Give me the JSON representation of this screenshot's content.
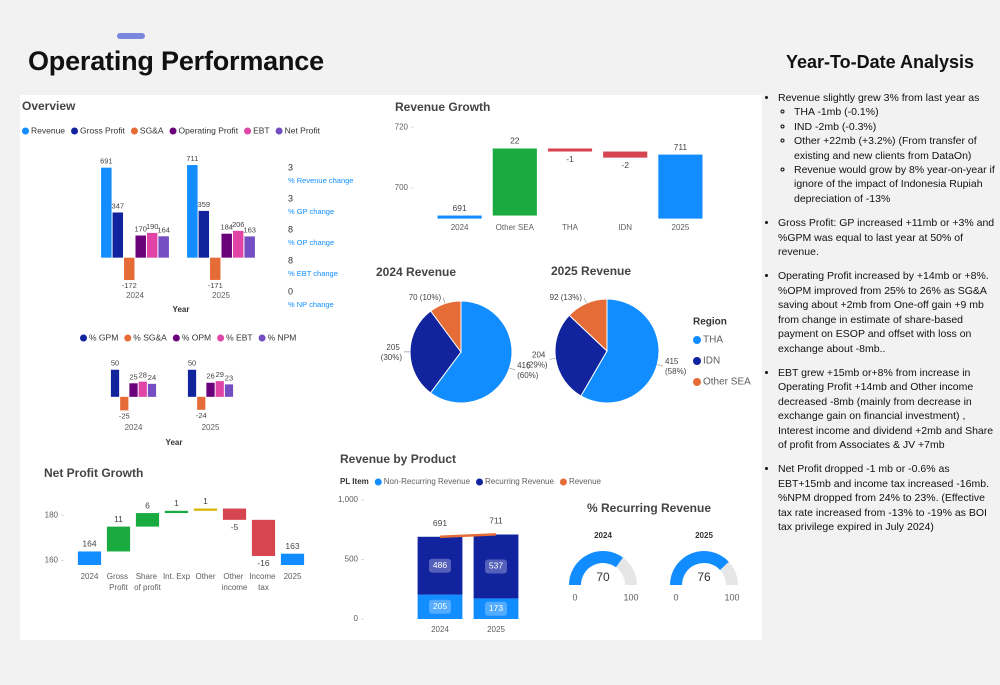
{
  "header": {
    "title": "Operating Performance"
  },
  "chart_data": [
    {
      "type": "bar",
      "title": "Overview",
      "x_label": "Year",
      "categories": [
        "2024",
        "2025"
      ],
      "series": [
        {
          "name": "Revenue",
          "color": "#118DFF",
          "values": [
            691,
            711
          ]
        },
        {
          "name": "Gross Profit",
          "color": "#12239E",
          "values": [
            347,
            359
          ]
        },
        {
          "name": "SG&A",
          "color": "#E66C37",
          "values": [
            -172,
            -171
          ]
        },
        {
          "name": "Operating Profit",
          "color": "#6B007B",
          "values": [
            170,
            184
          ]
        },
        {
          "name": "EBT",
          "color": "#E044A7",
          "values": [
            190,
            206
          ]
        },
        {
          "name": "Net Profit",
          "color": "#744EC2",
          "values": [
            164,
            163
          ]
        }
      ],
      "ylim": [
        -210,
        750
      ],
      "kpis": [
        {
          "value": 3,
          "label": "% Revenue change"
        },
        {
          "value": 3,
          "label": "% GP change"
        },
        {
          "value": 8,
          "label": "% OP change"
        },
        {
          "value": 8,
          "label": "% EBT change"
        },
        {
          "value": 0,
          "label": "% NP change"
        }
      ]
    },
    {
      "type": "bar",
      "x_label": "Year",
      "categories": [
        "2024",
        "2025"
      ],
      "series": [
        {
          "name": "% GPM",
          "color": "#12239E",
          "values": [
            50,
            50
          ]
        },
        {
          "name": "% SG&A",
          "color": "#E66C37",
          "values": [
            -25,
            -24
          ]
        },
        {
          "name": "% OPM",
          "color": "#6B007B",
          "values": [
            25,
            26
          ]
        },
        {
          "name": "% EBT",
          "color": "#E044A7",
          "values": [
            28,
            29
          ]
        },
        {
          "name": "% NPM",
          "color": "#744EC2",
          "values": [
            24,
            23
          ]
        }
      ],
      "ylim": [
        -28,
        68
      ]
    },
    {
      "type": "waterfall",
      "title": "Revenue Growth",
      "categories": [
        "2024",
        "Other SEA",
        "THA",
        "IDN",
        "2025"
      ],
      "values": [
        691,
        22,
        -1,
        -2,
        711
      ],
      "measure": [
        "total",
        "relative",
        "relative",
        "relative",
        "total"
      ],
      "colors": [
        "#118DFF",
        "#1AAB40",
        "#D64550",
        "#D64550",
        "#118DFF"
      ],
      "ylim": [
        690,
        723
      ],
      "yticks": [
        700,
        720
      ]
    },
    {
      "type": "pie",
      "title": "2024 Revenue",
      "categories": [
        "THA",
        "IDN",
        "Other SEA"
      ],
      "values": [
        416,
        205,
        70
      ],
      "value_labels": [
        "416 (60%)",
        "205 (30%)",
        "70 (10%)"
      ],
      "colors": [
        "#118DFF",
        "#12239E",
        "#E66C37"
      ]
    },
    {
      "type": "pie",
      "title": "2025 Revenue",
      "categories": [
        "THA",
        "IDN",
        "Other SEA"
      ],
      "values": [
        415,
        204,
        92
      ],
      "value_labels": [
        "415 (58%)",
        "204 (29%)",
        "92 (13%)"
      ],
      "colors": [
        "#118DFF",
        "#12239E",
        "#E66C37"
      ],
      "legend_title": "Region"
    },
    {
      "type": "waterfall",
      "title": "Net Profit Growth",
      "categories": [
        "2024",
        "Gross Profit",
        "Share of profit",
        "Int. Exp",
        "Other",
        "Other income",
        "Income tax",
        "2025"
      ],
      "values": [
        164,
        11,
        6,
        1,
        1,
        -5,
        -16,
        163
      ],
      "measure": [
        "total",
        "relative",
        "relative",
        "relative",
        "relative",
        "relative",
        "relative",
        "total"
      ],
      "colors": [
        "#118DFF",
        "#1AAB40",
        "#1AAB40",
        "#1AAB40",
        "#D9B300",
        "#D64550",
        "#D64550",
        "#118DFF"
      ],
      "ylim": [
        158,
        189
      ],
      "yticks": [
        160,
        180
      ]
    },
    {
      "type": "stacked_bar",
      "title": "Revenue by Product",
      "legend_title": "PL Item",
      "categories": [
        "2024",
        "2025"
      ],
      "series": [
        {
          "name": "Non-Recurring Revenue",
          "color": "#118DFF",
          "values": [
            205,
            173
          ]
        },
        {
          "name": "Recurring Revenue",
          "color": "#12239E",
          "values": [
            486,
            537
          ]
        },
        {
          "name": "Revenue",
          "color": "#E66C37",
          "values": [
            691,
            711
          ],
          "type": "line"
        }
      ],
      "ylim": [
        0,
        1000
      ],
      "yticks": [
        0,
        500,
        {
          "value": 1000,
          "label": "1,000"
        }
      ]
    },
    {
      "type": "gauge",
      "title": "% Recurring Revenue",
      "categories": [
        "2024",
        "2025"
      ],
      "values": [
        70,
        76
      ],
      "ylim": [
        0,
        100
      ],
      "color": "#118DFF"
    }
  ],
  "analysis": {
    "title": "Year-To-Date Analysis",
    "bullets": [
      {
        "text": "Revenue slightly grew 3% from last year as",
        "sub": [
          "THA -1mb (-0.1%)",
          "IND -2mb (-0.3%)",
          "Other +22mb (+3.2%) (From transfer of existing and new clients from DataOn)",
          "Revenue would grow by 8% year-on-year if ignore of the impact of Indonesia Rupiah depreciation of -13%"
        ]
      },
      {
        "text": "Gross Profit: GP increased +11mb or +3% and %GPM was equal to last year at 50% of revenue."
      },
      {
        "text": "Operating Profit increased by +14mb or +8%. %OPM improved from 25% to 26% as SG&A saving about +2mb from One-off gain +9 mb from change in estimate of share-based payment on ESOP and offset with loss on exchange about -8mb.."
      },
      {
        "text": "EBT grew +15mb or+8% from increase in Operating Profit +14mb and Other income decreased -8mb (mainly from decrease in exchange gain on financial investment) , Interest income and dividend +2mb and Share of profit from Associates & JV +7mb"
      },
      {
        "text": "Net Profit dropped -1 mb or -0.6% as EBT+15mb and income tax increased -16mb. %NPM dropped from 24% to 23%. (Effective tax rate increased from -13% to -19% as BOI tax privilege expired in July 2024)"
      }
    ]
  }
}
